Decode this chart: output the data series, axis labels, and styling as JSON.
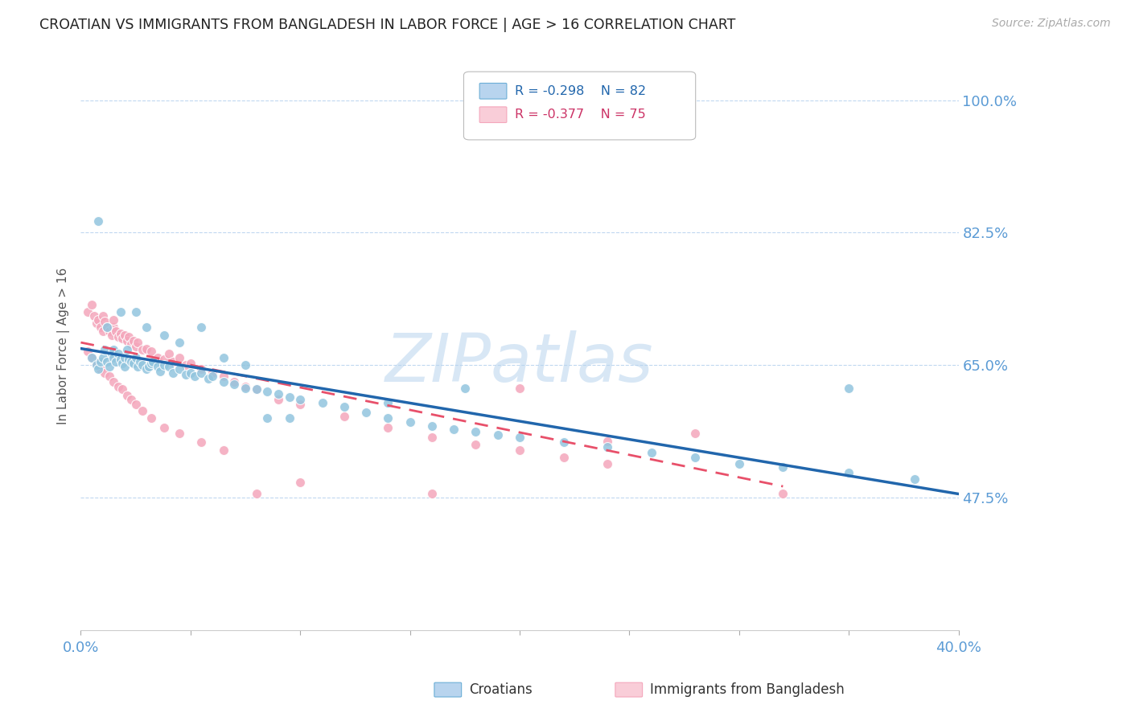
{
  "title": "CROATIAN VS IMMIGRANTS FROM BANGLADESH IN LABOR FORCE | AGE > 16 CORRELATION CHART",
  "source": "Source: ZipAtlas.com",
  "ylabel": "In Labor Force | Age > 16",
  "ytick_labels": [
    "100.0%",
    "82.5%",
    "65.0%",
    "47.5%"
  ],
  "ytick_values": [
    1.0,
    0.825,
    0.65,
    0.475
  ],
  "xlim": [
    0.0,
    0.4
  ],
  "ylim": [
    0.3,
    1.05
  ],
  "blue_color": "#92c5de",
  "pink_color": "#f4a6bb",
  "blue_line_color": "#2166ac",
  "pink_line_color": "#e8506a",
  "legend_R_blue": "R = -0.298",
  "legend_N_blue": "N = 82",
  "legend_R_pink": "R = -0.377",
  "legend_N_pink": "N = 75",
  "watermark": "ZIPatlas",
  "blue_scatter_x": [
    0.005,
    0.007,
    0.008,
    0.009,
    0.01,
    0.011,
    0.012,
    0.013,
    0.014,
    0.015,
    0.015,
    0.016,
    0.017,
    0.018,
    0.019,
    0.02,
    0.02,
    0.021,
    0.022,
    0.023,
    0.024,
    0.025,
    0.026,
    0.027,
    0.028,
    0.03,
    0.031,
    0.032,
    0.033,
    0.035,
    0.036,
    0.038,
    0.04,
    0.042,
    0.045,
    0.048,
    0.05,
    0.052,
    0.055,
    0.058,
    0.06,
    0.065,
    0.07,
    0.075,
    0.08,
    0.085,
    0.09,
    0.095,
    0.1,
    0.11,
    0.12,
    0.13,
    0.14,
    0.15,
    0.16,
    0.17,
    0.18,
    0.19,
    0.2,
    0.22,
    0.24,
    0.26,
    0.28,
    0.3,
    0.32,
    0.35,
    0.38,
    0.008,
    0.012,
    0.018,
    0.025,
    0.03,
    0.038,
    0.045,
    0.055,
    0.065,
    0.075,
    0.085,
    0.095,
    0.14,
    0.175,
    0.35
  ],
  "blue_scatter_y": [
    0.66,
    0.65,
    0.645,
    0.655,
    0.66,
    0.67,
    0.655,
    0.648,
    0.665,
    0.67,
    0.66,
    0.655,
    0.665,
    0.658,
    0.652,
    0.66,
    0.648,
    0.67,
    0.658,
    0.655,
    0.652,
    0.66,
    0.648,
    0.655,
    0.65,
    0.645,
    0.648,
    0.652,
    0.655,
    0.648,
    0.642,
    0.65,
    0.648,
    0.64,
    0.645,
    0.638,
    0.64,
    0.635,
    0.64,
    0.632,
    0.635,
    0.628,
    0.625,
    0.62,
    0.618,
    0.615,
    0.612,
    0.608,
    0.605,
    0.6,
    0.595,
    0.588,
    0.58,
    0.575,
    0.57,
    0.565,
    0.562,
    0.558,
    0.555,
    0.548,
    0.542,
    0.535,
    0.528,
    0.52,
    0.515,
    0.508,
    0.5,
    0.84,
    0.7,
    0.72,
    0.72,
    0.7,
    0.69,
    0.68,
    0.7,
    0.66,
    0.65,
    0.58,
    0.58,
    0.6,
    0.62,
    0.62
  ],
  "pink_scatter_x": [
    0.003,
    0.005,
    0.006,
    0.007,
    0.008,
    0.009,
    0.01,
    0.01,
    0.011,
    0.012,
    0.013,
    0.014,
    0.015,
    0.015,
    0.016,
    0.017,
    0.018,
    0.019,
    0.02,
    0.021,
    0.022,
    0.023,
    0.024,
    0.025,
    0.026,
    0.028,
    0.03,
    0.032,
    0.035,
    0.038,
    0.04,
    0.042,
    0.045,
    0.048,
    0.05,
    0.055,
    0.06,
    0.065,
    0.07,
    0.075,
    0.08,
    0.09,
    0.1,
    0.12,
    0.14,
    0.16,
    0.18,
    0.2,
    0.22,
    0.24,
    0.003,
    0.005,
    0.007,
    0.009,
    0.011,
    0.013,
    0.015,
    0.017,
    0.019,
    0.021,
    0.023,
    0.025,
    0.028,
    0.032,
    0.038,
    0.045,
    0.055,
    0.065,
    0.08,
    0.1,
    0.16,
    0.2,
    0.24,
    0.28,
    0.32
  ],
  "pink_scatter_y": [
    0.72,
    0.73,
    0.715,
    0.705,
    0.71,
    0.7,
    0.715,
    0.695,
    0.708,
    0.7,
    0.695,
    0.69,
    0.7,
    0.71,
    0.695,
    0.688,
    0.692,
    0.685,
    0.69,
    0.682,
    0.688,
    0.678,
    0.682,
    0.675,
    0.68,
    0.67,
    0.672,
    0.668,
    0.66,
    0.658,
    0.665,
    0.655,
    0.66,
    0.65,
    0.652,
    0.645,
    0.64,
    0.635,
    0.628,
    0.622,
    0.618,
    0.605,
    0.598,
    0.582,
    0.568,
    0.555,
    0.545,
    0.538,
    0.528,
    0.52,
    0.668,
    0.66,
    0.652,
    0.645,
    0.64,
    0.635,
    0.628,
    0.622,
    0.618,
    0.61,
    0.605,
    0.598,
    0.59,
    0.58,
    0.568,
    0.56,
    0.548,
    0.538,
    0.48,
    0.495,
    0.48,
    0.62,
    0.55,
    0.56,
    0.48
  ],
  "blue_trend_x": [
    0.0,
    0.4
  ],
  "blue_trend_y": [
    0.672,
    0.48
  ],
  "pink_trend_x": [
    0.0,
    0.32
  ],
  "pink_trend_y": [
    0.68,
    0.49
  ]
}
